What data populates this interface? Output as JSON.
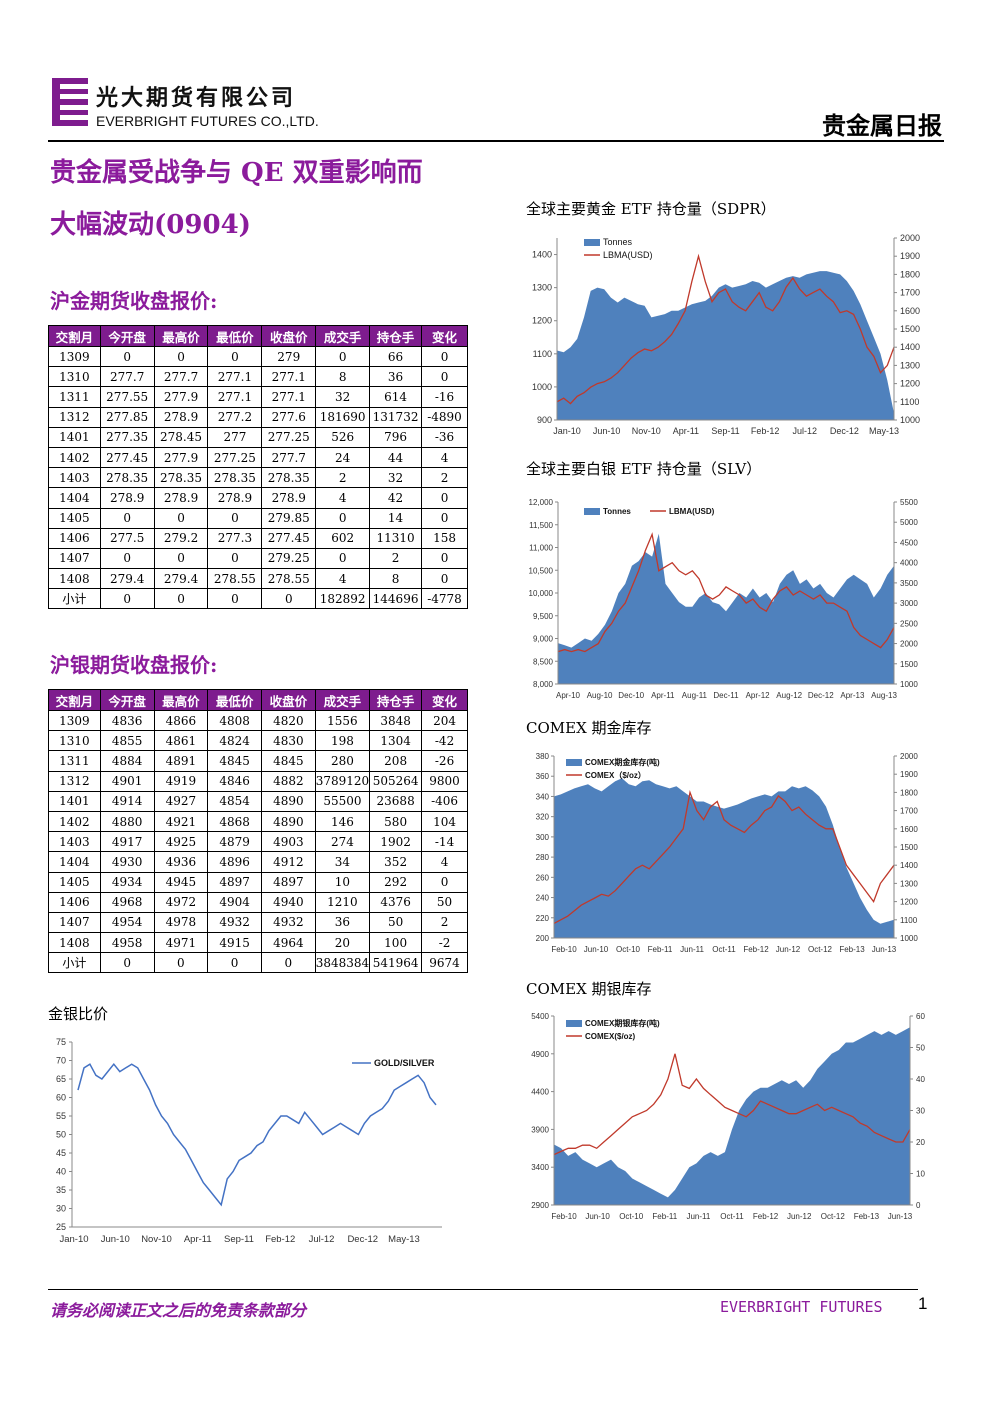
{
  "header": {
    "company_cn": "光大期货有限公司",
    "company_en": "EVERBRIGHT FUTURES CO.,LTD.",
    "report_type": "贵金属日报"
  },
  "title_line1": "贵金属受战争与 QE 双重影响而",
  "title_line2": "大幅波动(0904)",
  "gold_section": {
    "title": "沪金期货收盘报价:",
    "headers": [
      "交割月",
      "今开盘",
      "最高价",
      "最低价",
      "收盘价",
      "成交手",
      "持仓手",
      "变化"
    ],
    "rows": [
      [
        "1309",
        "0",
        "0",
        "0",
        "279",
        "0",
        "66",
        "0"
      ],
      [
        "1310",
        "277.7",
        "277.7",
        "277.1",
        "277.1",
        "8",
        "36",
        "0"
      ],
      [
        "1311",
        "277.55",
        "277.9",
        "277.1",
        "277.1",
        "32",
        "614",
        "-16"
      ],
      [
        "1312",
        "277.85",
        "278.9",
        "277.2",
        "277.6",
        "181690",
        "131732",
        "-4890"
      ],
      [
        "1401",
        "277.35",
        "278.45",
        "277",
        "277.25",
        "526",
        "796",
        "-36"
      ],
      [
        "1402",
        "277.45",
        "277.9",
        "277.25",
        "277.7",
        "24",
        "44",
        "4"
      ],
      [
        "1403",
        "278.35",
        "278.35",
        "278.35",
        "278.35",
        "2",
        "32",
        "2"
      ],
      [
        "1404",
        "278.9",
        "278.9",
        "278.9",
        "278.9",
        "4",
        "42",
        "0"
      ],
      [
        "1405",
        "0",
        "0",
        "0",
        "279.85",
        "0",
        "14",
        "0"
      ],
      [
        "1406",
        "277.5",
        "279.2",
        "277.3",
        "277.45",
        "602",
        "11310",
        "158"
      ],
      [
        "1407",
        "0",
        "0",
        "0",
        "279.25",
        "0",
        "2",
        "0"
      ],
      [
        "1408",
        "279.4",
        "279.4",
        "278.55",
        "278.55",
        "4",
        "8",
        "0"
      ],
      [
        "小计",
        "0",
        "0",
        "0",
        "0",
        "182892",
        "144696",
        "-4778"
      ]
    ]
  },
  "silver_section": {
    "title": "沪银期货收盘报价:",
    "headers": [
      "交割月",
      "今开盘",
      "最高价",
      "最低价",
      "收盘价",
      "成交手",
      "持仓手",
      "变化"
    ],
    "rows": [
      [
        "1309",
        "4836",
        "4866",
        "4808",
        "4820",
        "1556",
        "3848",
        "204"
      ],
      [
        "1310",
        "4855",
        "4861",
        "4824",
        "4830",
        "198",
        "1304",
        "-42"
      ],
      [
        "1311",
        "4884",
        "4891",
        "4845",
        "4845",
        "280",
        "208",
        "-26"
      ],
      [
        "1312",
        "4901",
        "4919",
        "4846",
        "4882",
        "3789120",
        "505264",
        "9800"
      ],
      [
        "1401",
        "4914",
        "4927",
        "4854",
        "4890",
        "55500",
        "23688",
        "-406"
      ],
      [
        "1402",
        "4880",
        "4921",
        "4868",
        "4890",
        "146",
        "580",
        "104"
      ],
      [
        "1403",
        "4917",
        "4925",
        "4879",
        "4903",
        "274",
        "1902",
        "-14"
      ],
      [
        "1404",
        "4930",
        "4936",
        "4896",
        "4912",
        "34",
        "352",
        "4"
      ],
      [
        "1405",
        "4934",
        "4945",
        "4897",
        "4897",
        "10",
        "292",
        "0"
      ],
      [
        "1406",
        "4968",
        "4972",
        "4904",
        "4940",
        "1210",
        "4376",
        "50"
      ],
      [
        "1407",
        "4954",
        "4978",
        "4932",
        "4932",
        "36",
        "50",
        "2"
      ],
      [
        "1408",
        "4958",
        "4971",
        "4915",
        "4964",
        "20",
        "100",
        "-2"
      ],
      [
        "小计",
        "0",
        "0",
        "0",
        "0",
        "3848384",
        "541964",
        "9674"
      ]
    ]
  },
  "charts": {
    "ratio_title": "金银比价",
    "gold_etf_title": "全球主要黄金 ETF 持仓量（SDPR）",
    "silver_etf_title": "全球主要白银 ETF 持仓量（SLV）",
    "comex_gold_title": "COMEX 期金库存",
    "comex_silver_title": "COMEX 期银库存"
  },
  "chart_data": [
    {
      "id": "gold_silver_ratio",
      "type": "line",
      "series": [
        {
          "name": "GOLD/SILVER",
          "color": "#4472c4",
          "values": [
            62,
            68,
            69,
            66,
            65,
            67,
            69,
            67,
            68,
            69,
            68,
            65,
            62,
            58,
            55,
            53,
            50,
            48,
            46,
            43,
            40,
            37,
            35,
            33,
            31,
            38,
            40,
            43,
            44,
            45,
            47,
            48,
            51,
            53,
            55,
            55,
            54,
            53,
            56,
            54,
            52,
            50,
            51,
            52,
            53,
            52,
            51,
            50,
            53,
            55,
            56,
            57,
            59,
            62,
            63,
            64,
            65,
            66,
            64,
            60,
            58
          ]
        }
      ],
      "x_ticks": [
        "Jan-10",
        "Jun-10",
        "Nov-10",
        "Apr-11",
        "Sep-11",
        "Feb-12",
        "Jul-12",
        "Dec-12",
        "May-13"
      ],
      "y_ticks": [
        25,
        30,
        35,
        40,
        45,
        50,
        55,
        60,
        65,
        70,
        75
      ],
      "ylim": [
        25,
        75
      ],
      "legend_position": "top-right"
    },
    {
      "id": "gold_etf",
      "type": "area",
      "series": [
        {
          "name": "Tonnes",
          "color": "#4f81bd",
          "axis": "left",
          "values": [
            1110,
            1105,
            1120,
            1145,
            1210,
            1290,
            1300,
            1295,
            1270,
            1255,
            1270,
            1260,
            1250,
            1245,
            1210,
            1215,
            1220,
            1230,
            1230,
            1240,
            1250,
            1255,
            1260,
            1275,
            1300,
            1310,
            1300,
            1305,
            1310,
            1320,
            1315,
            1300,
            1310,
            1320,
            1330,
            1335,
            1330,
            1340,
            1345,
            1350,
            1350,
            1345,
            1340,
            1320,
            1290,
            1250,
            1200,
            1150,
            1100,
            1020,
            920
          ]
        },
        {
          "name": "LBMA(USD)",
          "color": "#c0392b",
          "axis": "right",
          "values": [
            1100,
            1120,
            1090,
            1130,
            1150,
            1180,
            1200,
            1210,
            1230,
            1260,
            1300,
            1340,
            1370,
            1390,
            1380,
            1400,
            1430,
            1470,
            1530,
            1600,
            1760,
            1900,
            1760,
            1650,
            1700,
            1720,
            1650,
            1620,
            1600,
            1650,
            1700,
            1620,
            1600,
            1650,
            1730,
            1780,
            1720,
            1680,
            1700,
            1720,
            1680,
            1650,
            1590,
            1600,
            1580,
            1500,
            1400,
            1350,
            1260,
            1300,
            1400
          ]
        }
      ],
      "x_ticks": [
        "Jan-10",
        "Jun-10",
        "Nov-10",
        "Apr-11",
        "Sep-11",
        "Feb-12",
        "Jul-12",
        "Dec-12",
        "May-13"
      ],
      "y_ticks_left": [
        900,
        1000,
        1100,
        1200,
        1300,
        1400
      ],
      "y_ticks_right": [
        1000,
        1100,
        1200,
        1300,
        1400,
        1500,
        1600,
        1700,
        1800,
        1900,
        2000
      ],
      "ylim_left": [
        900,
        1450
      ],
      "ylim_right": [
        1000,
        2000
      ],
      "legend_position": "top-left"
    },
    {
      "id": "silver_etf",
      "type": "area",
      "series": [
        {
          "name": "Tonnes",
          "color": "#4f81bd",
          "axis": "left",
          "values": [
            8900,
            8850,
            8800,
            8900,
            9000,
            8950,
            9100,
            9300,
            9600,
            10000,
            10200,
            10600,
            10700,
            10900,
            10800,
            11300,
            10200,
            10000,
            9800,
            9700,
            9700,
            9900,
            10000,
            9800,
            9750,
            9600,
            9800,
            10000,
            9900,
            10100,
            9900,
            10000,
            9800,
            10200,
            10400,
            10500,
            10200,
            10300,
            10100,
            10200,
            10000,
            9900,
            10100,
            10300,
            10400,
            10300,
            10200,
            9900,
            10100,
            10400,
            10600
          ]
        },
        {
          "name": "LBMA(USD)",
          "color": "#c0392b",
          "axis": "right",
          "values": [
            1800,
            1850,
            1800,
            1850,
            1800,
            1900,
            2000,
            2300,
            2500,
            2800,
            3000,
            3400,
            3800,
            4300,
            4700,
            3800,
            3900,
            4000,
            3800,
            3700,
            3800,
            3600,
            3200,
            3100,
            3200,
            3400,
            3300,
            3200,
            3000,
            3100,
            2900,
            2800,
            3100,
            3300,
            3400,
            3200,
            3300,
            3200,
            3100,
            3200,
            3000,
            3000,
            2900,
            2800,
            2400,
            2200,
            2100,
            2000,
            1900,
            2100,
            2400
          ]
        }
      ],
      "x_ticks": [
        "Apr-10",
        "Aug-10",
        "Dec-10",
        "Apr-11",
        "Aug-11",
        "Dec-11",
        "Apr-12",
        "Aug-12",
        "Dec-12",
        "Apr-13",
        "Aug-13"
      ],
      "y_ticks_left": [
        "8,000",
        "8,500",
        "9,000",
        "9,500",
        "10,000",
        "10,500",
        "11,000",
        "11,500",
        "12,000"
      ],
      "y_ticks_right": [
        1000,
        1500,
        2000,
        2500,
        3000,
        3500,
        4000,
        4500,
        5000,
        5500
      ],
      "ylim_left": [
        8000,
        12000
      ],
      "ylim_right": [
        1000,
        5500
      ],
      "legend_position": "top-left"
    },
    {
      "id": "comex_gold",
      "type": "area",
      "series": [
        {
          "name": "COMEX期金库存(吨)",
          "color": "#4f81bd",
          "axis": "left",
          "values": [
            340,
            342,
            345,
            348,
            350,
            352,
            348,
            345,
            350,
            355,
            358,
            352,
            350,
            355,
            356,
            352,
            350,
            348,
            350,
            345,
            340,
            335,
            335,
            332,
            330,
            328,
            330,
            332,
            335,
            338,
            340,
            342,
            340,
            345,
            345,
            350,
            348,
            350,
            346,
            340,
            330,
            312,
            290,
            270,
            255,
            240,
            228,
            218,
            214,
            216,
            218
          ]
        },
        {
          "name": "COMEX（$/oz）",
          "color": "#c0392b",
          "axis": "right",
          "values": [
            1080,
            1100,
            1120,
            1150,
            1180,
            1200,
            1220,
            1240,
            1230,
            1260,
            1300,
            1340,
            1380,
            1400,
            1380,
            1420,
            1460,
            1500,
            1550,
            1600,
            1800,
            1700,
            1650,
            1720,
            1750,
            1650,
            1620,
            1600,
            1580,
            1620,
            1650,
            1700,
            1720,
            1780,
            1750,
            1700,
            1720,
            1680,
            1650,
            1620,
            1600,
            1600,
            1500,
            1400,
            1350,
            1300,
            1250,
            1200,
            1300,
            1350,
            1400
          ]
        }
      ],
      "x_ticks": [
        "Feb-10",
        "Jun-10",
        "Oct-10",
        "Feb-11",
        "Jun-11",
        "Oct-11",
        "Feb-12",
        "Jun-12",
        "Oct-12",
        "Feb-13",
        "Jun-13"
      ],
      "y_ticks_left": [
        200,
        220,
        240,
        260,
        280,
        300,
        320,
        340,
        360,
        380
      ],
      "y_ticks_right": [
        1000,
        1100,
        1200,
        1300,
        1400,
        1500,
        1600,
        1700,
        1800,
        1900,
        2000
      ],
      "ylim_left": [
        200,
        380
      ],
      "ylim_right": [
        1000,
        2000
      ],
      "legend_position": "top-left"
    },
    {
      "id": "comex_silver",
      "type": "area",
      "series": [
        {
          "name": "COMEX期银库存(吨)",
          "color": "#4f81bd",
          "axis": "left",
          "values": [
            3700,
            3650,
            3550,
            3600,
            3500,
            3450,
            3400,
            3450,
            3500,
            3400,
            3350,
            3250,
            3200,
            3150,
            3100,
            3050,
            3000,
            3100,
            3250,
            3400,
            3450,
            3550,
            3600,
            3550,
            3600,
            3900,
            4150,
            4300,
            4400,
            4450,
            4450,
            4500,
            4550,
            4500,
            4550,
            4450,
            4550,
            4700,
            4800,
            4900,
            4950,
            5050,
            5050,
            5100,
            5150,
            5200,
            5150,
            5200,
            5150,
            5200,
            5250
          ]
        },
        {
          "name": "COMEX($/oz)",
          "color": "#c0392b",
          "axis": "right",
          "values": [
            16,
            17,
            18,
            18,
            19,
            19,
            18,
            20,
            22,
            24,
            26,
            28,
            29,
            30,
            32,
            35,
            40,
            48,
            38,
            37,
            40,
            37,
            35,
            33,
            31,
            30,
            29,
            28,
            30,
            33,
            32,
            31,
            30,
            29,
            29,
            30,
            31,
            32,
            30,
            31,
            30,
            29,
            28,
            26,
            25,
            23,
            22,
            21,
            20,
            20,
            24
          ]
        }
      ],
      "x_ticks": [
        "Feb-10",
        "Jun-10",
        "Oct-10",
        "Feb-11",
        "Jun-11",
        "Oct-11",
        "Feb-12",
        "Jun-12",
        "Oct-12",
        "Feb-13",
        "Jun-13"
      ],
      "y_ticks_left": [
        2900,
        3400,
        3900,
        4400,
        4900,
        5400
      ],
      "y_ticks_right": [
        0,
        10,
        20,
        30,
        40,
        50,
        60
      ],
      "ylim_left": [
        2900,
        5400
      ],
      "ylim_right": [
        0,
        60
      ],
      "legend_position": "top-left"
    }
  ],
  "footer": {
    "disclaimer": "请务必阅读正文之后的免责条款部分",
    "brand": "EVERBRIGHT FUTURES",
    "page": "1"
  }
}
